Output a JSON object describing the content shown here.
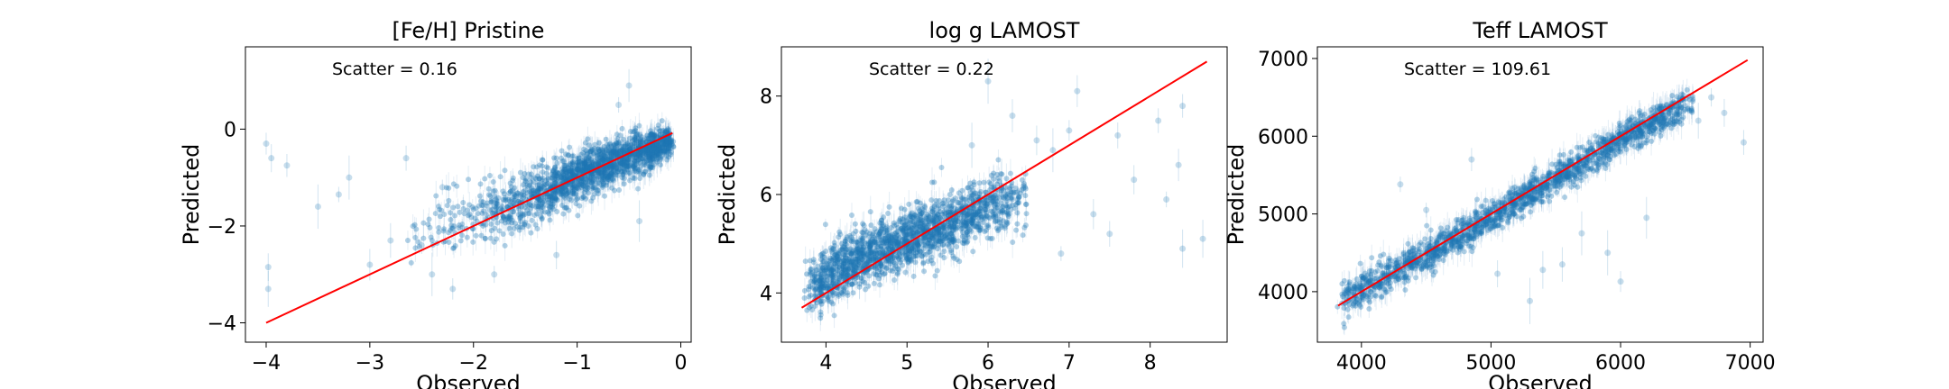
{
  "figure": {
    "background": "#ffffff",
    "point_color": "#1f77b4",
    "fit_line_color": "#ff0000"
  },
  "chart_data": [
    {
      "type": "scatter",
      "title": "[Fe/H] Pristine",
      "xlabel": "Observed",
      "ylabel": "Predicted",
      "annotation": "Scatter = 0.16",
      "xlim": [
        -4.2,
        0.1
      ],
      "ylim": [
        -4.4,
        1.7
      ],
      "xticks": [
        -4,
        -3,
        -2,
        -1,
        0
      ],
      "yticks": [
        0,
        -2,
        -4
      ],
      "xtick_labels": [
        "−4",
        "−3",
        "−2",
        "−1",
        "0"
      ],
      "ytick_labels": [
        "0",
        "−2",
        "−4"
      ],
      "grid": false,
      "error_bars": true,
      "fit_line": {
        "x": [
          -4.0,
          -0.08
        ],
        "y": [
          -4.0,
          -0.08
        ]
      },
      "cloud": {
        "centerline": {
          "x": [
            -2.6,
            -2.0,
            -1.5,
            -1.0,
            -0.5,
            -0.1
          ],
          "y": [
            -2.1,
            -1.85,
            -1.5,
            -1.0,
            -0.55,
            -0.25
          ]
        },
        "spread": [
          0.35,
          0.3,
          0.28,
          0.25,
          0.22,
          0.15
        ],
        "density": [
          0.05,
          0.15,
          0.45,
          0.9,
          1.0,
          1.0
        ]
      },
      "outliers": [
        {
          "x": -4.0,
          "y": -0.3
        },
        {
          "x": -3.95,
          "y": -0.6
        },
        {
          "x": -3.98,
          "y": -2.85
        },
        {
          "x": -3.98,
          "y": -3.3
        },
        {
          "x": -3.8,
          "y": -0.75
        },
        {
          "x": -3.3,
          "y": -1.35
        },
        {
          "x": -3.2,
          "y": -1.0
        },
        {
          "x": -3.0,
          "y": -2.8
        },
        {
          "x": -2.8,
          "y": -2.3
        },
        {
          "x": -2.65,
          "y": -0.6
        },
        {
          "x": -2.4,
          "y": -3.0
        },
        {
          "x": -2.2,
          "y": -3.3
        },
        {
          "x": -2.5,
          "y": -2.4
        },
        {
          "x": -1.8,
          "y": -3.0
        },
        {
          "x": -0.6,
          "y": 0.5
        },
        {
          "x": -0.5,
          "y": 0.9
        },
        {
          "x": -2.3,
          "y": -1.2
        },
        {
          "x": -1.2,
          "y": -2.6
        },
        {
          "x": -0.4,
          "y": -1.9
        },
        {
          "x": -3.5,
          "y": -1.6
        }
      ]
    },
    {
      "type": "scatter",
      "title": "log g LAMOST",
      "xlabel": "Observed",
      "ylabel": "Predicted",
      "annotation": "Scatter = 0.22",
      "xlim": [
        3.45,
        8.95
      ],
      "ylim": [
        3.0,
        9.0
      ],
      "xticks": [
        4,
        5,
        6,
        7,
        8
      ],
      "yticks": [
        4,
        6,
        8
      ],
      "xtick_labels": [
        "4",
        "5",
        "6",
        "7",
        "8"
      ],
      "ytick_labels": [
        "4",
        "6",
        "8"
      ],
      "grid": false,
      "error_bars": true,
      "fit_line": {
        "x": [
          3.7,
          8.7
        ],
        "y": [
          3.7,
          8.7
        ]
      },
      "cloud": {
        "centerline": {
          "x": [
            3.8,
            4.2,
            4.8,
            5.4,
            6.0,
            6.5
          ],
          "y": [
            4.1,
            4.55,
            4.95,
            5.35,
            5.75,
            6.0
          ]
        },
        "spread": [
          0.25,
          0.3,
          0.3,
          0.3,
          0.3,
          0.35
        ],
        "density": [
          0.6,
          1.0,
          1.0,
          1.0,
          0.6,
          0.25
        ]
      },
      "outliers": [
        {
          "x": 6.6,
          "y": 7.1
        },
        {
          "x": 6.8,
          "y": 6.9
        },
        {
          "x": 7.0,
          "y": 7.3
        },
        {
          "x": 7.3,
          "y": 5.6
        },
        {
          "x": 7.6,
          "y": 7.2
        },
        {
          "x": 7.8,
          "y": 6.3
        },
        {
          "x": 8.1,
          "y": 7.5
        },
        {
          "x": 8.2,
          "y": 5.9
        },
        {
          "x": 8.35,
          "y": 6.6
        },
        {
          "x": 8.4,
          "y": 7.8
        },
        {
          "x": 8.4,
          "y": 4.9
        },
        {
          "x": 8.65,
          "y": 5.1
        },
        {
          "x": 6.9,
          "y": 4.8
        },
        {
          "x": 7.1,
          "y": 8.1
        },
        {
          "x": 6.3,
          "y": 7.6
        },
        {
          "x": 6.0,
          "y": 8.3
        },
        {
          "x": 5.8,
          "y": 7.0
        },
        {
          "x": 7.5,
          "y": 5.2
        }
      ]
    },
    {
      "type": "scatter",
      "title": "Teff LAMOST",
      "xlabel": "Observed",
      "ylabel": "Predicted",
      "annotation": "Scatter = 109.61",
      "xlim": [
        3660,
        7100
      ],
      "ylim": [
        3350,
        7150
      ],
      "xticks": [
        4000,
        5000,
        6000,
        7000
      ],
      "yticks": [
        4000,
        5000,
        6000,
        7000
      ],
      "xtick_labels": [
        "4000",
        "5000",
        "6000",
        "7000"
      ],
      "ytick_labels": [
        "4000",
        "5000",
        "6000",
        "7000"
      ],
      "grid": false,
      "error_bars": true,
      "fit_line": {
        "x": [
          3820,
          6980
        ],
        "y": [
          3820,
          6980
        ]
      },
      "cloud": {
        "centerline": {
          "x": [
            3850,
            4300,
            5000,
            5700,
            6300,
            6550
          ],
          "y": [
            3880,
            4280,
            4950,
            5650,
            6250,
            6430
          ]
        },
        "spread": [
          130,
          110,
          100,
          100,
          100,
          90
        ],
        "density": [
          0.7,
          1.0,
          1.0,
          1.0,
          1.0,
          0.6
        ]
      },
      "outliers": [
        {
          "x": 4300,
          "y": 5380
        },
        {
          "x": 4500,
          "y": 5050
        },
        {
          "x": 4850,
          "y": 5700
        },
        {
          "x": 5050,
          "y": 4230
        },
        {
          "x": 5300,
          "y": 3880
        },
        {
          "x": 5400,
          "y": 4280
        },
        {
          "x": 5550,
          "y": 4350
        },
        {
          "x": 5700,
          "y": 4750
        },
        {
          "x": 5900,
          "y": 4500
        },
        {
          "x": 6000,
          "y": 4130
        },
        {
          "x": 6200,
          "y": 4950
        },
        {
          "x": 6700,
          "y": 6500
        },
        {
          "x": 6800,
          "y": 6300
        },
        {
          "x": 6950,
          "y": 5920
        },
        {
          "x": 6600,
          "y": 6200
        }
      ]
    }
  ]
}
